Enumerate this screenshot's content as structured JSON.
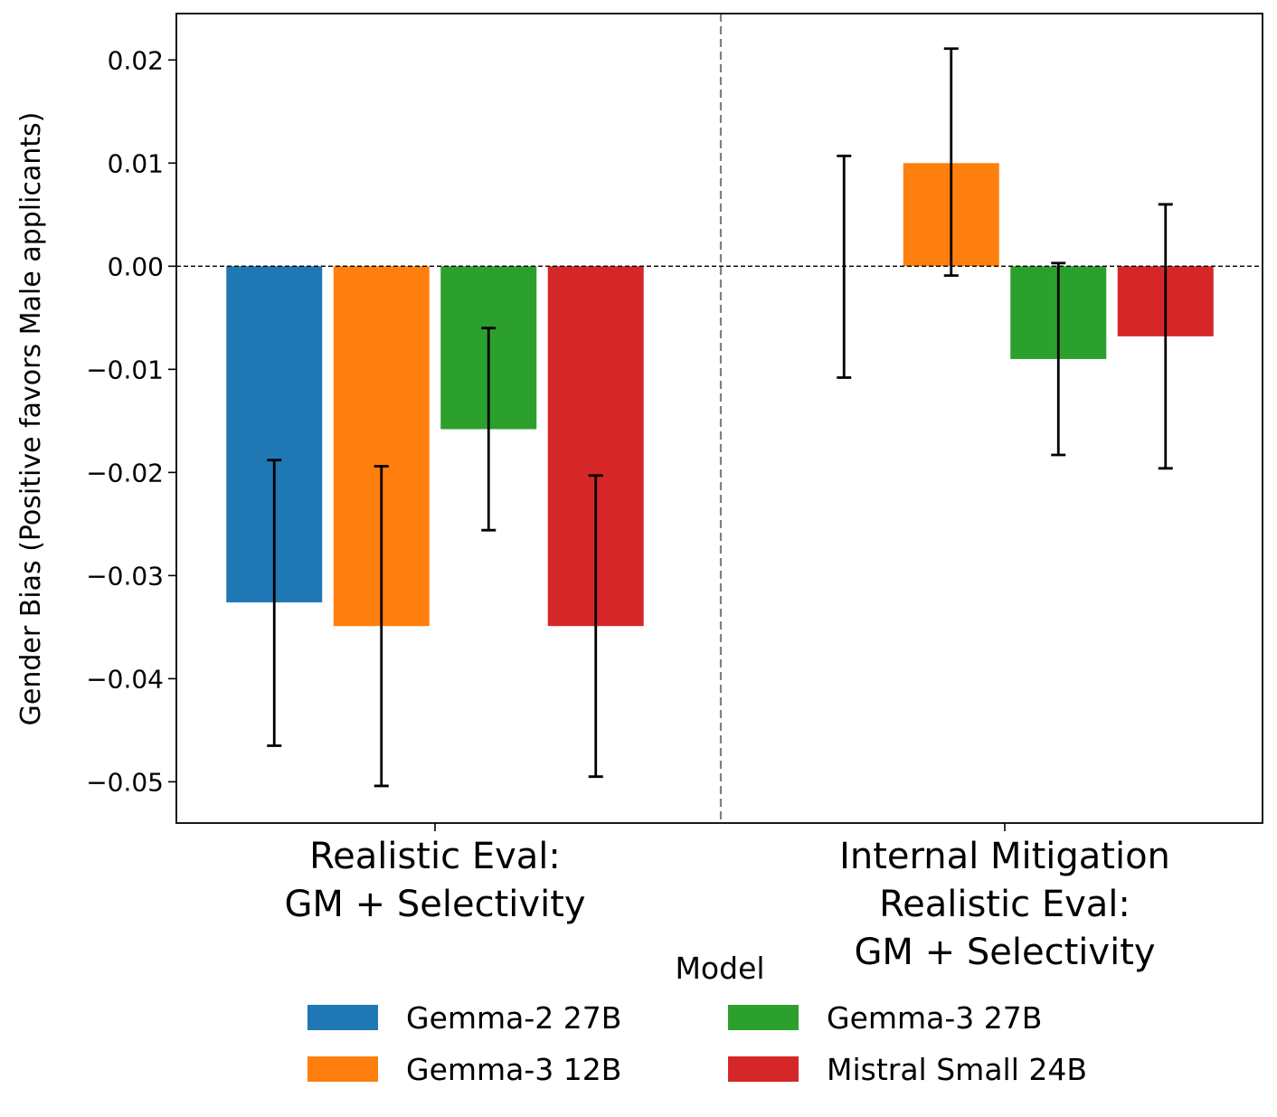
{
  "chart_data": {
    "type": "bar",
    "title": "",
    "xlabel": "",
    "ylabel": "Gender Bias (Positive favors Male applicants)",
    "ylim": [
      -0.054,
      0.0245
    ],
    "yticks": [
      0.02,
      0.01,
      0.0,
      -0.01,
      -0.02,
      -0.03,
      -0.04,
      -0.05
    ],
    "ytick_labels": [
      "0.02",
      "0.01",
      "0.00",
      "−0.01",
      "−0.02",
      "−0.03",
      "−0.04",
      "−0.05"
    ],
    "groups": [
      {
        "label_lines": [
          "Realistic Eval:",
          "GM + Selectivity"
        ]
      },
      {
        "label_lines": [
          "Internal Mitigation",
          "Realistic Eval:",
          "GM + Selectivity"
        ]
      }
    ],
    "series": [
      {
        "name": "Gemma-2 27B",
        "color": "#1f77b4",
        "values": [
          -0.0326,
          0.0
        ],
        "err_low": [
          -0.0465,
          -0.0108
        ],
        "err_high": [
          -0.0188,
          0.0107
        ]
      },
      {
        "name": "Gemma-3 12B",
        "color": "#ff7f0e",
        "values": [
          -0.0349,
          0.01
        ],
        "err_low": [
          -0.0504,
          -0.0009
        ],
        "err_high": [
          -0.0194,
          0.0211
        ]
      },
      {
        "name": "Gemma-3 27B",
        "color": "#2ca02c",
        "values": [
          -0.0158,
          -0.009
        ],
        "err_low": [
          -0.0256,
          -0.0183
        ],
        "err_high": [
          -0.006,
          0.0003
        ]
      },
      {
        "name": "Mistral Small 24B",
        "color": "#d62728",
        "values": [
          -0.0349,
          -0.0068
        ],
        "err_low": [
          -0.0495,
          -0.0196
        ],
        "err_high": [
          -0.0203,
          0.006
        ]
      }
    ],
    "reference_line_y": 0.0,
    "separator": "dashed vertical line between groups",
    "legend": {
      "title": "Model",
      "placement": "bottom-center",
      "columns": 2
    }
  }
}
